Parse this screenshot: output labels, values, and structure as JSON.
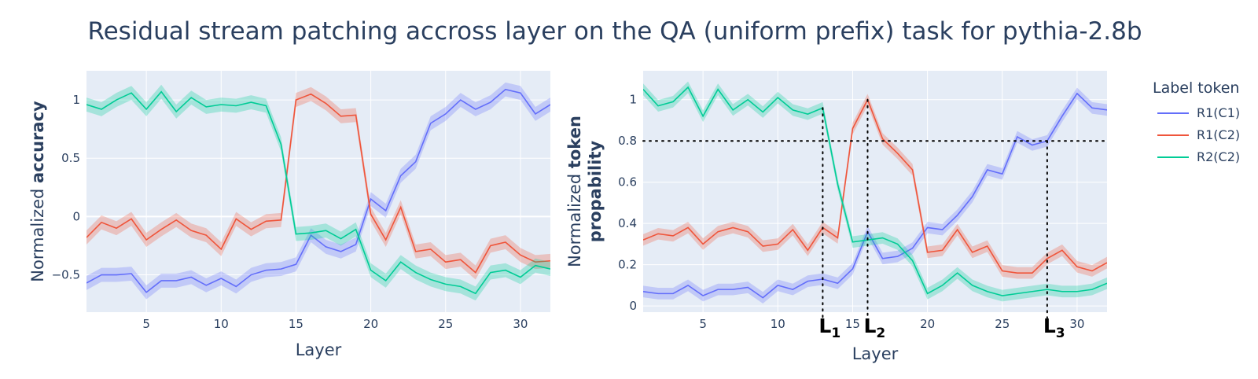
{
  "title": "Residual stream patching accross layer on the QA (uniform prefix) task for pythia-2.8b",
  "colors": {
    "R1(C1)": "#636efa",
    "R1(C2)": "#ef553b",
    "R2(C2)": "#00cc96",
    "plot_bg": "#e5ecf6",
    "text": "#2a3f5f"
  },
  "legend": {
    "title": "Label token",
    "entries": [
      "R1(C1)",
      "R1(C2)",
      "R2(C2)"
    ]
  },
  "chart_data": [
    {
      "type": "line",
      "xlabel": "Layer",
      "ylabel_prefix": "Normalized ",
      "ylabel_bold": "accuracy",
      "xlim": [
        1,
        32
      ],
      "ylim": [
        -0.82,
        1.25
      ],
      "xticks": [
        5,
        10,
        15,
        20,
        25,
        30
      ],
      "yticks": [
        1,
        0.5,
        0,
        -0.5
      ],
      "ytick_labels": [
        "1",
        "0.5",
        "0",
        "−0.5"
      ],
      "x": [
        1,
        2,
        3,
        4,
        5,
        6,
        7,
        8,
        9,
        10,
        11,
        12,
        13,
        14,
        15,
        16,
        17,
        18,
        19,
        20,
        21,
        22,
        23,
        24,
        25,
        26,
        27,
        28,
        29,
        30,
        31,
        32
      ],
      "band": 0.06,
      "series": [
        {
          "name": "R1(C1)",
          "values": [
            -0.57,
            -0.5,
            -0.5,
            -0.49,
            -0.65,
            -0.55,
            -0.55,
            -0.52,
            -0.59,
            -0.53,
            -0.6,
            -0.5,
            -0.46,
            -0.45,
            -0.41,
            -0.16,
            -0.26,
            -0.3,
            -0.24,
            0.15,
            0.05,
            0.35,
            0.47,
            0.8,
            0.88,
            1.0,
            0.92,
            0.98,
            1.09,
            1.06,
            0.88,
            0.96
          ]
        },
        {
          "name": "R1(C2)",
          "values": [
            -0.18,
            -0.05,
            -0.1,
            -0.02,
            -0.2,
            -0.11,
            -0.03,
            -0.12,
            -0.16,
            -0.28,
            -0.02,
            -0.11,
            -0.04,
            -0.03,
            1.0,
            1.05,
            0.97,
            0.86,
            0.87,
            0.02,
            -0.2,
            0.08,
            -0.3,
            -0.28,
            -0.39,
            -0.37,
            -0.48,
            -0.25,
            -0.22,
            -0.33,
            -0.39,
            -0.38
          ]
        },
        {
          "name": "R2(C2)",
          "values": [
            0.96,
            0.92,
            1.0,
            1.06,
            0.92,
            1.07,
            0.9,
            1.02,
            0.94,
            0.96,
            0.95,
            0.98,
            0.95,
            0.62,
            -0.15,
            -0.14,
            -0.12,
            -0.19,
            -0.11,
            -0.46,
            -0.55,
            -0.39,
            -0.48,
            -0.54,
            -0.58,
            -0.6,
            -0.66,
            -0.48,
            -0.46,
            -0.52,
            -0.42,
            -0.45
          ]
        }
      ]
    },
    {
      "type": "line",
      "xlabel": "Layer",
      "ylabel_prefix": "Normalized ",
      "ylabel_bold": "token",
      "ylabel_line2_bold": "propability",
      "xlim": [
        1,
        32
      ],
      "ylim": [
        -0.03,
        1.14
      ],
      "xticks": [
        5,
        10,
        15,
        20,
        25,
        30
      ],
      "yticks": [
        0,
        0.2,
        0.4,
        0.6,
        0.8,
        1
      ],
      "ytick_labels": [
        "0",
        "0.2",
        "0.4",
        "0.6",
        "0.8",
        "1"
      ],
      "x": [
        1,
        2,
        3,
        4,
        5,
        6,
        7,
        8,
        9,
        10,
        11,
        12,
        13,
        14,
        15,
        16,
        17,
        18,
        19,
        20,
        21,
        22,
        23,
        24,
        25,
        26,
        27,
        28,
        29,
        30,
        31,
        32
      ],
      "band": 0.028,
      "series": [
        {
          "name": "R1(C1)",
          "values": [
            0.07,
            0.06,
            0.06,
            0.1,
            0.05,
            0.08,
            0.08,
            0.09,
            0.04,
            0.1,
            0.08,
            0.12,
            0.13,
            0.11,
            0.18,
            0.36,
            0.23,
            0.24,
            0.28,
            0.38,
            0.37,
            0.44,
            0.53,
            0.66,
            0.64,
            0.82,
            0.78,
            0.8,
            0.92,
            1.03,
            0.96,
            0.95
          ]
        },
        {
          "name": "R1(C2)",
          "values": [
            0.32,
            0.35,
            0.34,
            0.38,
            0.3,
            0.36,
            0.38,
            0.36,
            0.29,
            0.3,
            0.37,
            0.27,
            0.38,
            0.33,
            0.86,
            1.0,
            0.81,
            0.74,
            0.66,
            0.26,
            0.27,
            0.37,
            0.26,
            0.29,
            0.17,
            0.16,
            0.16,
            0.23,
            0.27,
            0.19,
            0.17,
            0.21
          ]
        },
        {
          "name": "R2(C2)",
          "values": [
            1.05,
            0.97,
            0.99,
            1.06,
            0.92,
            1.05,
            0.95,
            1.0,
            0.94,
            1.01,
            0.95,
            0.93,
            0.96,
            0.59,
            0.31,
            0.32,
            0.33,
            0.3,
            0.22,
            0.06,
            0.1,
            0.16,
            0.1,
            0.07,
            0.05,
            0.06,
            0.07,
            0.08,
            0.07,
            0.07,
            0.08,
            0.11
          ]
        }
      ],
      "hline": 0.8,
      "vlines": [
        {
          "x": 13,
          "y_top": 0.96,
          "label": "L",
          "sub": "1"
        },
        {
          "x": 16,
          "y_top": 1.0,
          "label": "L",
          "sub": "2"
        },
        {
          "x": 28,
          "y_top": 0.8,
          "label": "L",
          "sub": "3"
        }
      ]
    }
  ]
}
